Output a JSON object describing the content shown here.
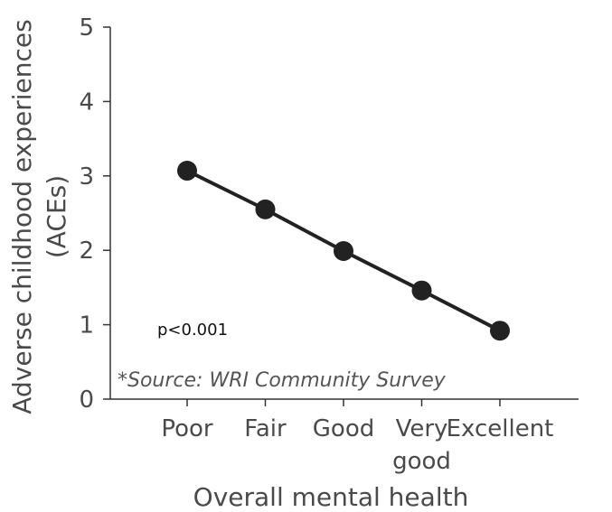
{
  "chart_data": {
    "type": "line",
    "categories": [
      "Poor",
      "Fair",
      "Good",
      "Very good",
      "Excellent"
    ],
    "category_label_lines": [
      [
        "Poor"
      ],
      [
        "Fair"
      ],
      [
        "Good"
      ],
      [
        "Very",
        "good"
      ],
      [
        "Excellent"
      ]
    ],
    "values": [
      3.07,
      2.55,
      1.99,
      1.46,
      0.92
    ],
    "xlabel": "Overall mental health",
    "ylabel_lines": [
      "Adverse childhood experiences",
      "(ACEs)"
    ],
    "yticks": [
      "0",
      "1",
      "2",
      "3",
      "4",
      "5"
    ],
    "ylim": [
      0,
      5
    ],
    "annotation": "p<0.001",
    "source": "*Source: WRI Community Survey",
    "grid": false,
    "colors": {
      "line": "#222222",
      "marker": "#222222"
    }
  }
}
